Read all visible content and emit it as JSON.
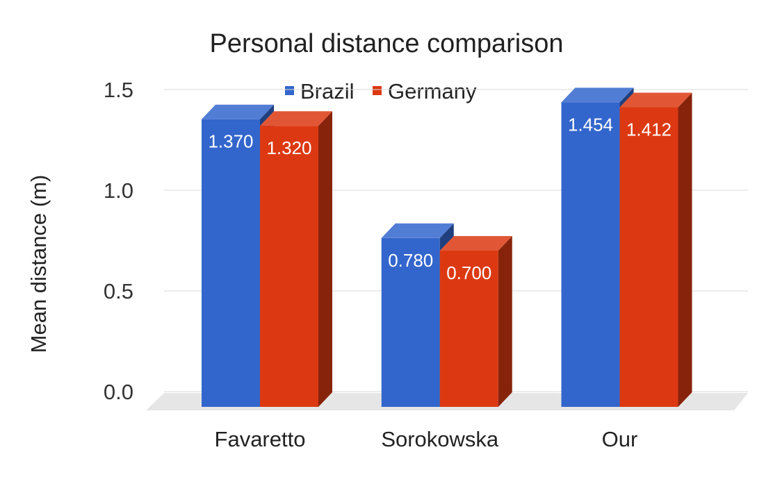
{
  "chart_data": {
    "type": "bar",
    "title": "Personal distance comparison",
    "xlabel": "",
    "ylabel": "Mean distance (m)",
    "ylim": [
      0,
      1.5
    ],
    "yticks": [
      "0.0",
      "0.5",
      "1.0",
      "1.5"
    ],
    "categories": [
      "Favaretto",
      "Sorokowska",
      "Our"
    ],
    "series": [
      {
        "name": "Brazil",
        "color": "#3366cc",
        "values": [
          1.37,
          0.78,
          1.454
        ],
        "labels": [
          "1.370",
          "0.780",
          "1.454"
        ]
      },
      {
        "name": "Germany",
        "color": "#dc3912",
        "values": [
          1.32,
          0.7,
          1.412
        ],
        "labels": [
          "1.320",
          "0.700",
          "1.412"
        ]
      }
    ],
    "legend_position": "top",
    "grid": true,
    "style": "3d"
  }
}
